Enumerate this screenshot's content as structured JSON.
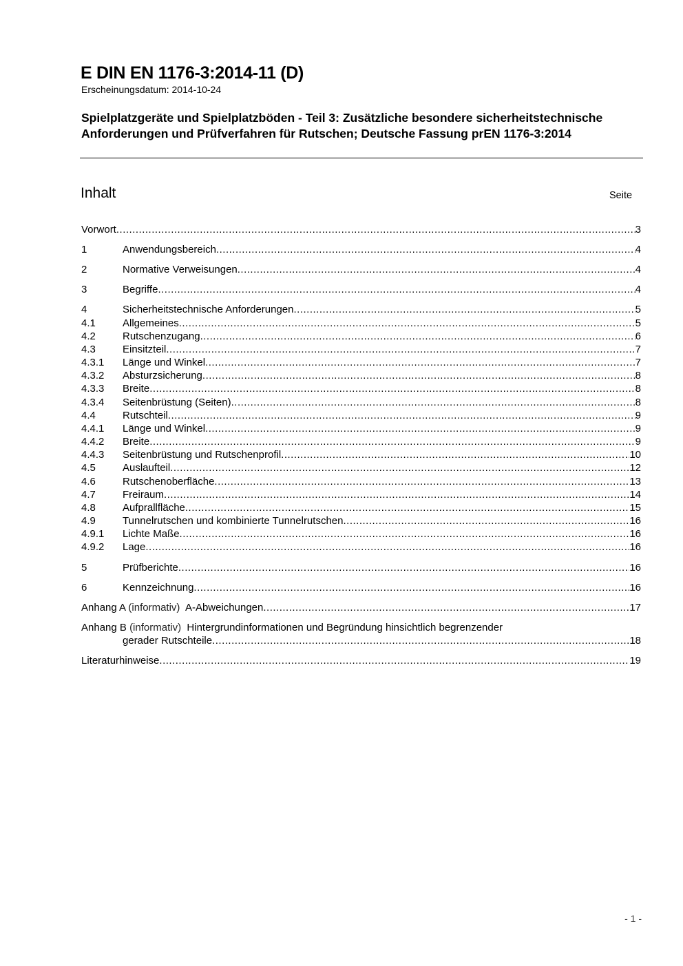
{
  "header": {
    "doc_id": "E DIN EN 1176-3:2014-11 (D)",
    "pub_date": "Erscheinungsdatum: 2014-10-24",
    "subtitle": "Spielplatzgeräte und Spielplatzböden - Teil 3: Zusätzliche besondere sicherheitstechnische Anforderungen und Prüfverfahren für Rutschen; Deutsche Fassung prEN 1176-3:2014"
  },
  "toc": {
    "heading": "Inhalt",
    "page_label": "Seite",
    "entries": [
      {
        "num": "",
        "title": "Vorwort",
        "page": "3"
      },
      {
        "num": "1",
        "title": "Anwendungsbereich",
        "page": "4"
      },
      {
        "num": "2",
        "title": "Normative Verweisungen",
        "page": "4"
      },
      {
        "num": "3",
        "title": "Begriffe",
        "page": "4"
      },
      {
        "num": "4",
        "title": "Sicherheitstechnische Anforderungen",
        "page": "5"
      },
      {
        "num": "4.1",
        "title": "Allgemeines",
        "page": "5"
      },
      {
        "num": "4.2",
        "title": "Rutschenzugang",
        "page": "6"
      },
      {
        "num": "4.3",
        "title": "Einsitzteil",
        "page": "7"
      },
      {
        "num": "4.3.1",
        "title": "Länge und Winkel",
        "page": "7"
      },
      {
        "num": "4.3.2",
        "title": "Absturzsicherung",
        "page": "8"
      },
      {
        "num": "4.3.3",
        "title": "Breite",
        "page": "8"
      },
      {
        "num": "4.3.4",
        "title": "Seitenbrüstung (Seiten)",
        "page": "8"
      },
      {
        "num": "4.4",
        "title": "Rutschteil",
        "page": "9"
      },
      {
        "num": "4.4.1",
        "title": "Länge und Winkel",
        "page": "9"
      },
      {
        "num": "4.4.2",
        "title": "Breite",
        "page": "9"
      },
      {
        "num": "4.4.3",
        "title": "Seitenbrüstung und Rutschenprofil",
        "page": "10"
      },
      {
        "num": "4.5",
        "title": "Auslaufteil",
        "page": "12"
      },
      {
        "num": "4.6",
        "title": "Rutschenoberfläche",
        "page": "13"
      },
      {
        "num": "4.7",
        "title": "Freiraum",
        "page": "14"
      },
      {
        "num": "4.8",
        "title": "Aufprallfläche",
        "page": "15"
      },
      {
        "num": "4.9",
        "title": "Tunnelrutschen und kombinierte Tunnelrutschen",
        "page": "16"
      },
      {
        "num": "4.9.1",
        "title": "Lichte Maße",
        "page": "16"
      },
      {
        "num": "4.9.2",
        "title": "Lage",
        "page": "16"
      },
      {
        "num": "5",
        "title": "Prüfberichte",
        "page": "16"
      },
      {
        "num": "6",
        "title": "Kennzeichnung",
        "page": "16"
      }
    ],
    "annex_a": {
      "label": "Anhang A",
      "kind": "(informativ)",
      "title": "A-Abweichungen",
      "page": "17"
    },
    "annex_b": {
      "label": "Anhang B",
      "kind": "(informativ)",
      "title": "Hintergrundinformationen und Begründung hinsichtlich begrenzender",
      "title_cont": "gerader Rutschteile",
      "page": "18"
    },
    "bibliography": {
      "title": "Literaturhinweise",
      "page": "19"
    }
  },
  "footer": {
    "page_number": "- 1 -"
  }
}
